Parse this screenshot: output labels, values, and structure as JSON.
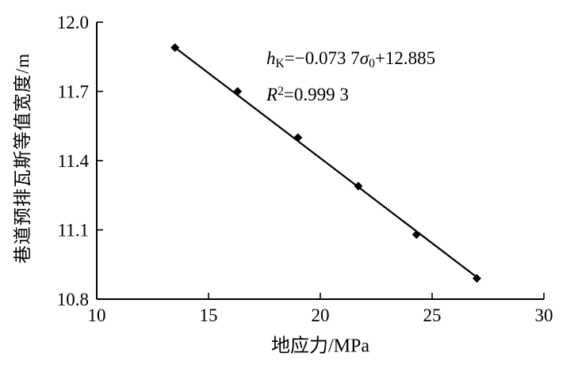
{
  "chart_data": {
    "type": "scatter",
    "x": [
      13.5,
      16.3,
      19.0,
      21.7,
      24.3,
      27.0
    ],
    "y": [
      11.89,
      11.7,
      11.5,
      11.29,
      11.08,
      10.89
    ],
    "fit": {
      "slope": -0.0737,
      "intercept": 12.885,
      "r_squared": 0.9993
    },
    "xlabel": "地应力/MPa",
    "ylabel": "巷道预排瓦斯等值宽度/m",
    "xlim": [
      10,
      30
    ],
    "ylim": [
      10.8,
      12.0
    ],
    "xticks": [
      10,
      15,
      20,
      25,
      30
    ],
    "yticks": [
      10.8,
      11.1,
      11.4,
      11.7,
      12.0
    ],
    "xtick_labels": [
      "10",
      "15",
      "20",
      "25",
      "30"
    ],
    "ytick_labels": [
      "10.8",
      "11.1",
      "11.4",
      "11.7",
      "12.0"
    ],
    "marker": "diamond",
    "line_color": "#000000",
    "axis_color": "#000000",
    "grid": false,
    "legend": "none"
  },
  "annotation": {
    "h": "h",
    "h_sub": "K",
    "eq1": "=−0.073 7",
    "sigma": "σ",
    "sigma_sub": "0",
    "eq2": "+12.885",
    "r": "R",
    "r_exp": "2",
    "r_value": "=0.999 3"
  }
}
